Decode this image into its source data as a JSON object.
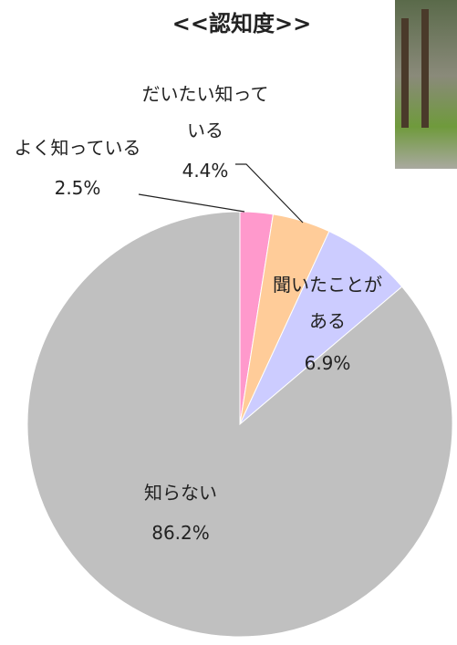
{
  "chart_data": {
    "type": "pie",
    "title": "<<認知度>>",
    "categories": [
      "よく知っている",
      "だいたい知っている",
      "聞いたことがある",
      "知らない"
    ],
    "values": [
      2.5,
      4.4,
      6.9,
      86.2
    ],
    "value_labels": [
      "2.5%",
      "4.4%",
      "6.9%",
      "86.2%"
    ],
    "colors": [
      "#ff99cc",
      "#ffcc99",
      "#ccccff",
      "#c0c0c0"
    ]
  }
}
